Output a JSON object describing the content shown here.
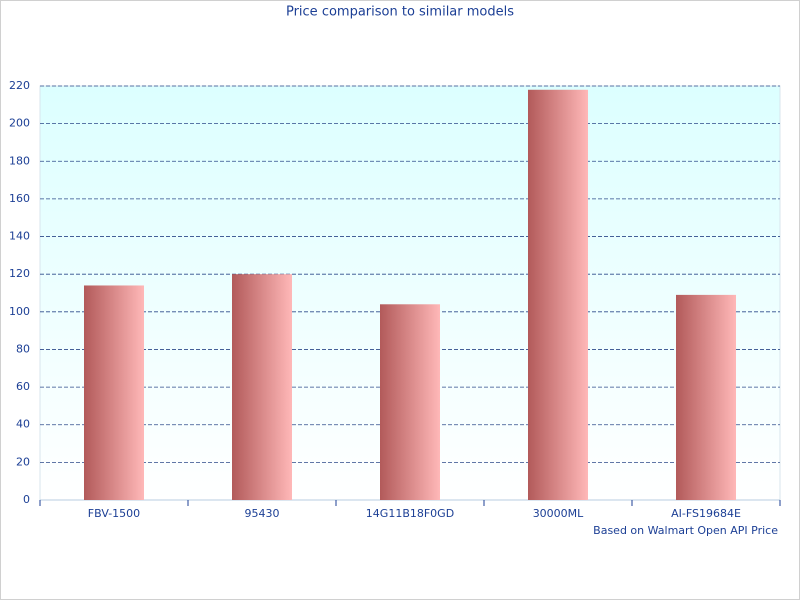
{
  "chart_data": {
    "type": "bar",
    "title": "Price comparison to similar models",
    "annotation": "Based on Walmart Open API Price",
    "categories": [
      "FBV-1500",
      "95430",
      "14G11B18F0GD",
      "30000ML",
      "AI-FS19684E"
    ],
    "values": [
      114,
      120,
      104,
      218,
      109
    ],
    "color": [
      "#b25a5a",
      "#ffb8b8"
    ],
    "ylim": [
      0,
      220
    ],
    "yticks": [
      0,
      20,
      40,
      60,
      80,
      100,
      120,
      140,
      160,
      180,
      200,
      220
    ],
    "grid": true
  }
}
